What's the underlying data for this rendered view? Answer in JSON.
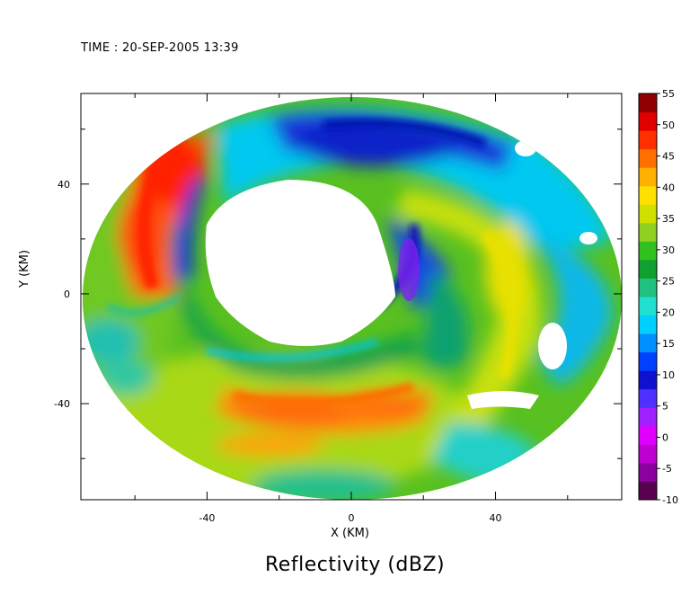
{
  "header": {
    "time_text": "TIME : 20-SEP-2005 13:39"
  },
  "chart_data": {
    "type": "heatmap",
    "title": "Reflectivity (dBZ)",
    "xlabel": "X (KM)",
    "ylabel": "Y (KM)",
    "xlim": [
      -75,
      75
    ],
    "ylim": [
      -75,
      73
    ],
    "xticks": [
      -40,
      0,
      40
    ],
    "yticks": [
      40,
      0,
      -40
    ],
    "colorbar": {
      "ticks": [
        55,
        50,
        45,
        40,
        35,
        30,
        25,
        20,
        15,
        10,
        5,
        0,
        -5,
        -10
      ],
      "range": [
        -10,
        55
      ],
      "colors": [
        "#5a0050",
        "#8c00a0",
        "#c000d0",
        "#e000ff",
        "#a020ff",
        "#5030ff",
        "#1010d0",
        "#0040ff",
        "#0090ff",
        "#00d0ff",
        "#20e0d0",
        "#20c080",
        "#10a030",
        "#30c020",
        "#90d020",
        "#d0e000",
        "#ffe000",
        "#ffb000",
        "#ff7000",
        "#ff3000",
        "#e00000",
        "#900000"
      ]
    },
    "features": [
      {
        "name": "eyewall-west-high",
        "x": -52,
        "y": 25,
        "value": 47
      },
      {
        "name": "rainband-south",
        "x": -10,
        "y": -38,
        "value": 44
      },
      {
        "name": "rainband-east",
        "x": 45,
        "y": 10,
        "value": 36
      },
      {
        "name": "eye-clear",
        "x": -5,
        "y": 15,
        "value": null
      },
      {
        "name": "north-weak",
        "x": 10,
        "y": 55,
        "value": 12
      }
    ]
  }
}
